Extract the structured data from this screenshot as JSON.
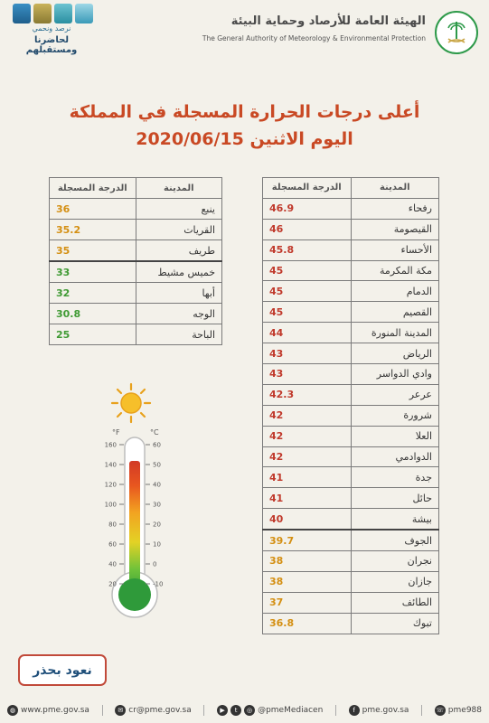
{
  "header": {
    "org_ar": "الهيئة العامة للأرصاد وحماية البيئة",
    "org_en": "The General Authority of Meteorology & Environmental Protection",
    "slogan_sub": "نرصد ونحمي",
    "slogan_main": "لحاضرنا ومستقبلهم"
  },
  "title": {
    "line1": "أعلى درجات الحرارة المسجلة في المملكة",
    "line2": "اليوم الاثنين 2020/06/15"
  },
  "table_headers": {
    "city": "المدينة",
    "temp": "الدرجة المسجلة"
  },
  "colors": {
    "red": "#c0392b",
    "orange": "#d48f12",
    "green": "#3f9a33",
    "title": "#c94924"
  },
  "right_table": [
    {
      "city": "رفحاء",
      "temp": "46.9",
      "level": "red"
    },
    {
      "city": "القيصومة",
      "temp": "46",
      "level": "red"
    },
    {
      "city": "الأحساء",
      "temp": "45.8",
      "level": "red"
    },
    {
      "city": "مكة المكرمة",
      "temp": "45",
      "level": "red"
    },
    {
      "city": "الدمام",
      "temp": "45",
      "level": "red"
    },
    {
      "city": "القصيم",
      "temp": "45",
      "level": "red"
    },
    {
      "city": "المدينة المنورة",
      "temp": "44",
      "level": "red"
    },
    {
      "city": "الرياض",
      "temp": "43",
      "level": "red"
    },
    {
      "city": "وادي الدواسر",
      "temp": "43",
      "level": "red"
    },
    {
      "city": "عرعر",
      "temp": "42.3",
      "level": "red"
    },
    {
      "city": "شرورة",
      "temp": "42",
      "level": "red"
    },
    {
      "city": "العلا",
      "temp": "42",
      "level": "red"
    },
    {
      "city": "الدوادمي",
      "temp": "42",
      "level": "red"
    },
    {
      "city": "جدة",
      "temp": "41",
      "level": "red"
    },
    {
      "city": "حائل",
      "temp": "41",
      "level": "red"
    },
    {
      "city": "بيشة",
      "temp": "40",
      "level": "red"
    },
    {
      "city": "الجوف",
      "temp": "39.7",
      "level": "orange"
    },
    {
      "city": "نجران",
      "temp": "38",
      "level": "orange"
    },
    {
      "city": "جازان",
      "temp": "38",
      "level": "orange"
    },
    {
      "city": "الطائف",
      "temp": "37",
      "level": "orange"
    },
    {
      "city": "تبوك",
      "temp": "36.8",
      "level": "orange"
    }
  ],
  "left_table": [
    {
      "city": "ينبع",
      "temp": "36",
      "level": "orange"
    },
    {
      "city": "القريات",
      "temp": "35.2",
      "level": "orange"
    },
    {
      "city": "طريف",
      "temp": "35",
      "level": "orange"
    },
    {
      "city": "خميس مشيط",
      "temp": "33",
      "level": "green"
    },
    {
      "city": "أبها",
      "temp": "32",
      "level": "green"
    },
    {
      "city": "الوجه",
      "temp": "30.8",
      "level": "green"
    },
    {
      "city": "الباحة",
      "temp": "25",
      "level": "green"
    }
  ],
  "thermometer": {
    "unit_f": "°F",
    "unit_c": "°C",
    "f_ticks": [
      "160",
      "140",
      "120",
      "100",
      "80",
      "60",
      "40",
      "20"
    ],
    "c_ticks": [
      "60",
      "50",
      "40",
      "30",
      "20",
      "10",
      "0",
      "-10"
    ]
  },
  "badge_text": "نعود بحذر",
  "footer": {
    "website": "www.pme.gov.sa",
    "email": "cr@pme.gov.sa",
    "twitter": "@pmeMediacen",
    "facebook": "pme.gov.sa",
    "instagram": "pme988"
  }
}
